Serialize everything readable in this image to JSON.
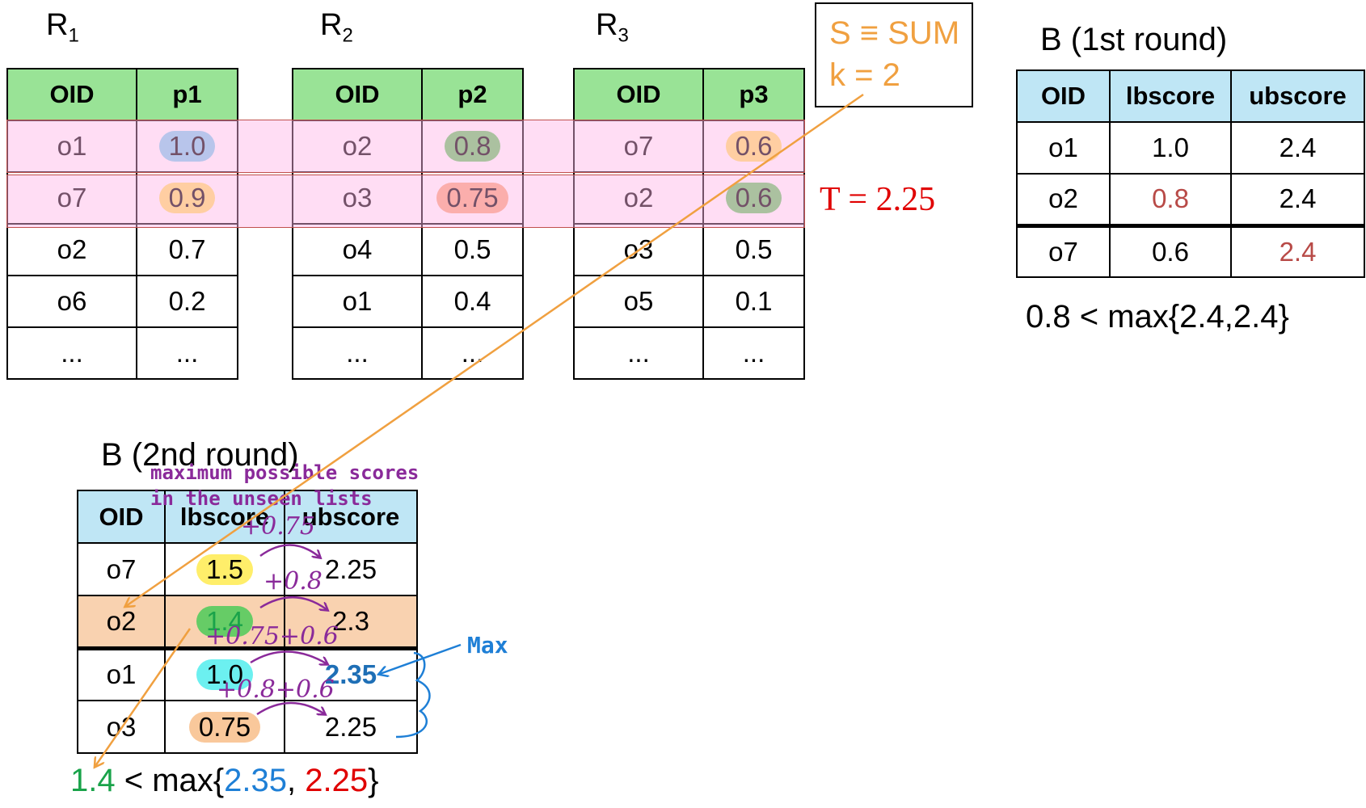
{
  "relations": [
    {
      "name": "R",
      "sub": "1",
      "headers": [
        "OID",
        "p1"
      ],
      "rows": [
        [
          "o1",
          "1.0"
        ],
        [
          "o7",
          "0.9"
        ],
        [
          "o2",
          "0.7"
        ],
        [
          "o6",
          "0.2"
        ],
        [
          "...",
          "..."
        ]
      ]
    },
    {
      "name": "R",
      "sub": "2",
      "headers": [
        "OID",
        "p2"
      ],
      "rows": [
        [
          "o2",
          "0.8"
        ],
        [
          "o3",
          "0.75"
        ],
        [
          "o4",
          "0.5"
        ],
        [
          "o1",
          "0.4"
        ],
        [
          "...",
          "..."
        ]
      ]
    },
    {
      "name": "R",
      "sub": "3",
      "headers": [
        "OID",
        "p3"
      ],
      "rows": [
        [
          "o7",
          "0.6"
        ],
        [
          "o2",
          "0.6"
        ],
        [
          "o3",
          "0.5"
        ],
        [
          "o5",
          "0.1"
        ],
        [
          "...",
          "..."
        ]
      ]
    }
  ],
  "params_box": {
    "line1": "S ≡ SUM",
    "line2": "k = 2"
  },
  "threshold": "T = 2.25",
  "round1": {
    "title": "B (1st round)",
    "headers": [
      "OID",
      "lbscore",
      "ubscore"
    ],
    "rows": [
      [
        "o1",
        "1.0",
        "2.4"
      ],
      [
        "o2",
        "0.8",
        "2.4"
      ],
      [
        "o7",
        "0.6",
        "2.4"
      ]
    ],
    "condition": "0.8 < max{2.4,2.4}"
  },
  "round2": {
    "title": "B (2nd round)",
    "headers": [
      "OID",
      "lbscore",
      "ubscore"
    ],
    "rows": [
      [
        "o7",
        "1.5",
        "2.25"
      ],
      [
        "o2",
        "1.4",
        "2.3"
      ],
      [
        "o1",
        "1.0",
        "2.35"
      ],
      [
        "o3",
        "0.75",
        "2.25"
      ]
    ],
    "annotation_line1": "maximum possible scores",
    "annotation_line2": "in the unseen lists",
    "max_label": "Max",
    "hand_notes": [
      "+0.75",
      "+0.8",
      "+0.75+0.6",
      "+0.8+0.6"
    ],
    "condition": {
      "lhs": "1.4",
      "op": " < max{",
      "a": "2.35",
      "sep": ", ",
      "b": "2.25",
      "close": "}"
    }
  },
  "colors": {
    "header_green": "#99e396",
    "header_blue": "#bfe6f5",
    "band_pink": "#ffd6f0",
    "orange": "#f0a040",
    "red": "#e00000",
    "purple": "#8a2a9a",
    "blue": "#1e7fd6",
    "green_text": "#1aa34a",
    "pill_blue": "#7fd3ef",
    "pill_yellow": "#ffe36a",
    "pill_green": "#66cc66",
    "pill_salmon": "#f7a97c",
    "pill_cyan": "#6cf0f0",
    "pill_peach": "#f9c89b",
    "row_peach": "#f9d2b0",
    "muted_red": "#b84a47"
  }
}
